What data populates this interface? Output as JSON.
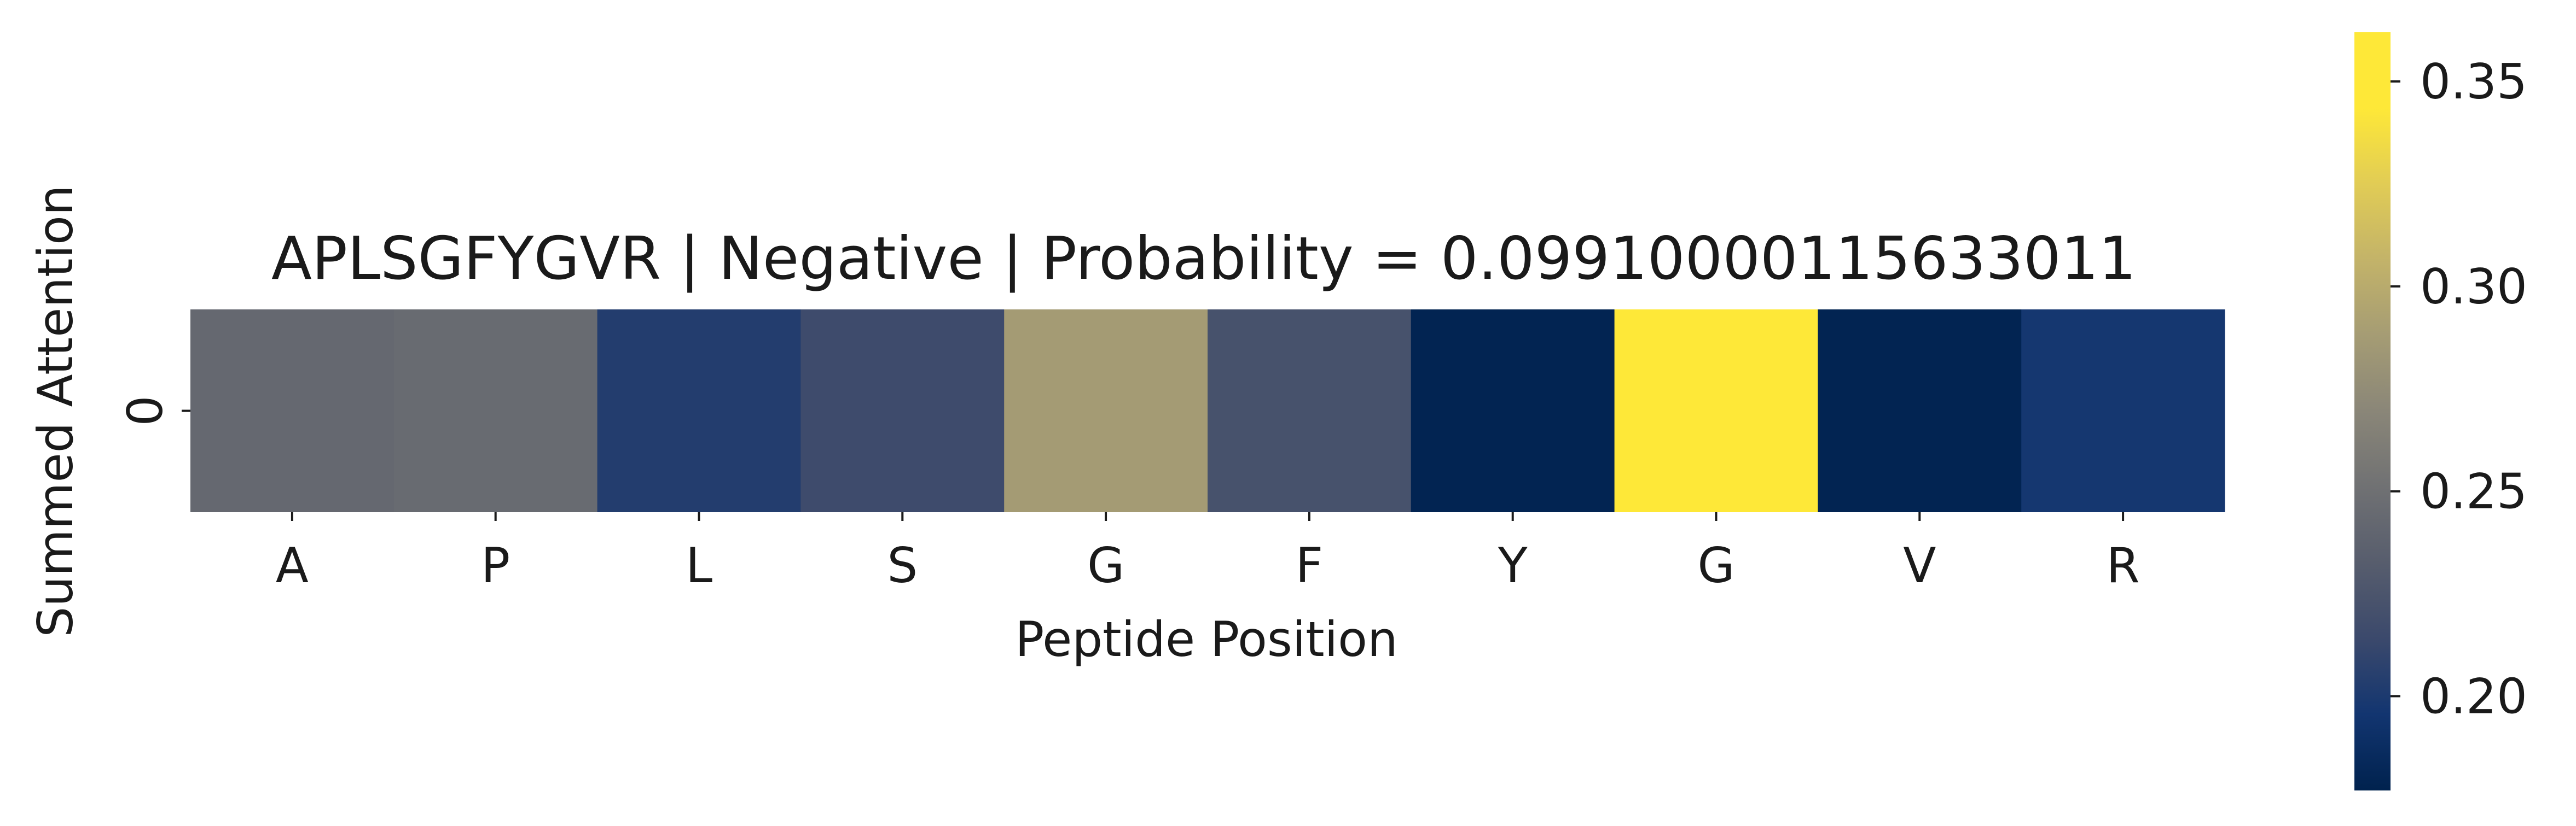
{
  "chart_data": {
    "type": "heatmap",
    "title": "APLSGFYGVR | Negative | Probability = 0.09910000115633011",
    "xlabel": "Peptide Position",
    "ylabel": "Summed Attention",
    "x_categories": [
      "A",
      "P",
      "L",
      "S",
      "G",
      "F",
      "Y",
      "G",
      "V",
      "R"
    ],
    "y_categories": [
      "0"
    ],
    "values": [
      [
        0.243,
        0.245,
        0.203,
        0.216,
        0.287,
        0.222,
        0.179,
        0.362,
        0.179,
        0.197
      ]
    ],
    "colormap": "cividis",
    "colorbar": {
      "vmin": 0.177,
      "vmax": 0.362,
      "ticks": [
        0.2,
        0.25,
        0.3,
        0.35
      ],
      "tick_labels": [
        "0.20",
        "0.25",
        "0.30",
        "0.35"
      ]
    }
  }
}
